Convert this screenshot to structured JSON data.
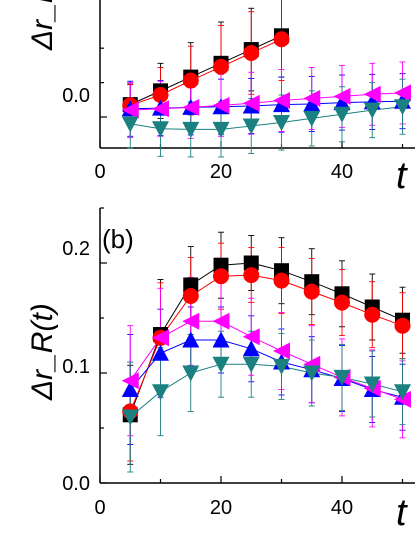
{
  "chart_data": [
    {
      "type": "scatter",
      "panel_label": "",
      "ylabel": "Δr_R",
      "xlabel": "t",
      "x_ticks": [
        "0",
        "20",
        "40"
      ],
      "y_ticks": [
        "0.0"
      ],
      "xlim": [
        0,
        54
      ],
      "ylim": [
        -0.045,
        0.17
      ],
      "series": [
        {
          "marker": "square",
          "color": "#000000",
          "x": [
            5,
            10,
            15,
            20,
            25,
            30
          ],
          "y": [
            0.018,
            0.038,
            0.058,
            0.078,
            0.098,
            0.118
          ],
          "err": [
            0.03,
            0.04,
            0.05,
            0.06,
            0.06,
            0.06
          ]
        },
        {
          "marker": "circle",
          "color": "#ff0000",
          "x": [
            5,
            10,
            15,
            20,
            25,
            30
          ],
          "y": [
            0.017,
            0.032,
            0.053,
            0.073,
            0.093,
            0.113
          ],
          "err": [
            0.03,
            0.04,
            0.05,
            0.06,
            0.06,
            0.06
          ]
        },
        {
          "marker": "triangle-up",
          "color": "#0000ff",
          "x": [
            5,
            10,
            15,
            20,
            25,
            30,
            35,
            40,
            45,
            50
          ],
          "y": [
            0.012,
            0.013,
            0.014,
            0.015,
            0.016,
            0.018,
            0.019,
            0.021,
            0.022,
            0.023
          ],
          "err": [
            0.04,
            0.04,
            0.04,
            0.04,
            0.04,
            0.04,
            0.04,
            0.04,
            0.04,
            0.04
          ]
        },
        {
          "marker": "triangle-left",
          "color": "#ff00ff",
          "x": [
            5,
            10,
            15,
            20,
            25,
            30,
            35,
            40,
            45,
            50
          ],
          "y": [
            0.01,
            0.012,
            0.014,
            0.017,
            0.02,
            0.024,
            0.027,
            0.03,
            0.033,
            0.035
          ],
          "err": [
            0.04,
            0.04,
            0.045,
            0.045,
            0.045,
            0.045,
            0.045,
            0.045,
            0.045,
            0.045
          ]
        },
        {
          "marker": "triangle-down",
          "color": "#1a8080",
          "x": [
            5,
            10,
            15,
            20,
            25,
            30,
            35,
            40,
            45,
            50
          ],
          "y": [
            -0.01,
            -0.017,
            -0.018,
            -0.018,
            -0.013,
            -0.008,
            -0.002,
            0.004,
            0.01,
            0.015
          ],
          "err": [
            0.035,
            0.04,
            0.04,
            0.04,
            0.04,
            0.04,
            0.04,
            0.04,
            0.04,
            0.04
          ]
        }
      ]
    },
    {
      "type": "scatter",
      "panel_label": "(b)",
      "ylabel": "Δr_R(t)",
      "xlabel": "t",
      "x_ticks": [
        "0",
        "20",
        "40"
      ],
      "y_ticks": [
        "0.0",
        "0.1",
        "0.2"
      ],
      "xlim": [
        0,
        54
      ],
      "ylim": [
        0,
        0.25
      ],
      "series": [
        {
          "marker": "square",
          "color": "#000000",
          "x": [
            5,
            10,
            15,
            20,
            25,
            30,
            35,
            40,
            45,
            50
          ],
          "y": [
            0.062,
            0.135,
            0.18,
            0.198,
            0.2,
            0.193,
            0.183,
            0.172,
            0.16,
            0.148
          ],
          "err": [
            0.045,
            0.05,
            0.035,
            0.03,
            0.025,
            0.03,
            0.03,
            0.03,
            0.03,
            0.03
          ]
        },
        {
          "marker": "circle",
          "color": "#ff0000",
          "x": [
            5,
            10,
            15,
            20,
            25,
            30,
            35,
            40,
            45,
            50
          ],
          "y": [
            0.065,
            0.132,
            0.17,
            0.188,
            0.189,
            0.184,
            0.174,
            0.164,
            0.153,
            0.143
          ],
          "err": [
            0.045,
            0.05,
            0.035,
            0.03,
            0.025,
            0.03,
            0.03,
            0.03,
            0.03,
            0.03
          ]
        },
        {
          "marker": "triangle-up",
          "color": "#0000ff",
          "x": [
            5,
            10,
            15,
            20,
            25,
            30,
            35,
            40,
            45,
            50
          ],
          "y": [
            0.085,
            0.118,
            0.13,
            0.13,
            0.122,
            0.11,
            0.103,
            0.095,
            0.085,
            0.078
          ],
          "err": [
            0.05,
            0.04,
            0.03,
            0.03,
            0.03,
            0.03,
            0.03,
            0.03,
            0.03,
            0.03
          ]
        },
        {
          "marker": "triangle-left",
          "color": "#ff00ff",
          "x": [
            5,
            10,
            15,
            20,
            25,
            30,
            35,
            40,
            45,
            50
          ],
          "y": [
            0.093,
            0.132,
            0.147,
            0.147,
            0.133,
            0.12,
            0.108,
            0.096,
            0.086,
            0.076
          ],
          "err": [
            0.05,
            0.045,
            0.04,
            0.035,
            0.035,
            0.035,
            0.035,
            0.035,
            0.035,
            0.035
          ]
        },
        {
          "marker": "triangle-down",
          "color": "#1a8080",
          "x": [
            5,
            10,
            15,
            20,
            25,
            30,
            35,
            40,
            45,
            50
          ],
          "y": [
            0.06,
            0.083,
            0.1,
            0.108,
            0.108,
            0.106,
            0.1,
            0.096,
            0.09,
            0.083
          ],
          "err": [
            0.05,
            0.04,
            0.035,
            0.03,
            0.03,
            0.03,
            0.03,
            0.03,
            0.03,
            0.03
          ]
        }
      ]
    }
  ]
}
